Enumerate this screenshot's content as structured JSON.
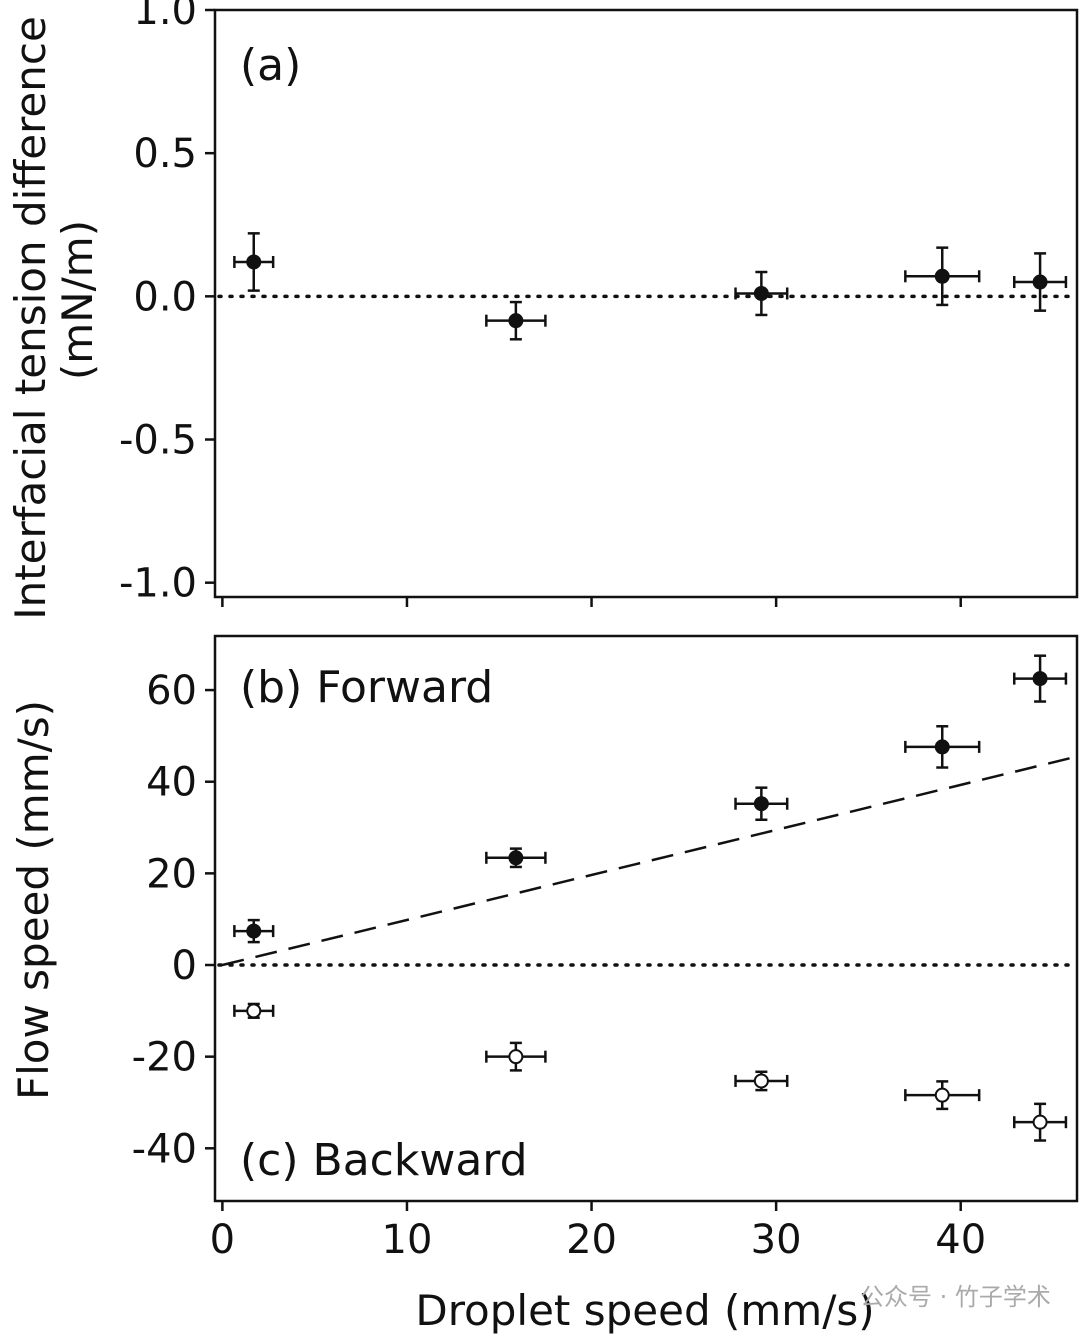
{
  "chart_data": [
    {
      "type": "scatter",
      "panel_label": "(a)",
      "ylabel": [
        "Interfacial tension difference",
        "(mN/m)"
      ],
      "xlim": [
        -0.4,
        46.3
      ],
      "ylim": [
        -1.05,
        1.0
      ],
      "xticks": [
        0,
        10,
        20,
        30,
        40
      ],
      "yticks": [
        1.0,
        0.5,
        0.0,
        -0.5,
        -1.0
      ],
      "ytick_labels": [
        "1.0",
        "0.5",
        "0.0",
        "-0.5",
        "-1.0"
      ],
      "reference_line": {
        "y": 0,
        "style": "dotted"
      },
      "series": [
        {
          "marker": "filled-circle",
          "x": [
            1.7,
            15.9,
            29.2,
            39.0,
            44.3
          ],
          "y": [
            0.12,
            -0.085,
            0.01,
            0.07,
            0.05
          ],
          "xerr": [
            1.05,
            1.6,
            1.4,
            2.0,
            1.4
          ],
          "yerr": [
            0.1,
            0.065,
            0.075,
            0.1,
            0.1
          ]
        }
      ]
    },
    {
      "type": "scatter",
      "xlabel": "Droplet speed (mm/s)",
      "ylabel": "Flow speed (mm/s)",
      "xlim": [
        -0.4,
        46.3
      ],
      "ylim": [
        -51.5,
        71.8
      ],
      "xticks": [
        0,
        10,
        20,
        30,
        40
      ],
      "xtick_labels": [
        "0",
        "10",
        "20",
        "30",
        "40"
      ],
      "yticks": [
        60,
        40,
        20,
        0,
        -20,
        -40
      ],
      "ytick_labels": [
        "60",
        "40",
        "20",
        "0",
        "-20",
        "-40"
      ],
      "reference_line": {
        "y": 0,
        "style": "dotted"
      },
      "fit_line": {
        "style": "dashed",
        "points": [
          [
            0,
            0
          ],
          [
            46.2,
            45.4
          ]
        ]
      },
      "series": [
        {
          "name": "(b) Forward",
          "marker": "filled-circle",
          "x": [
            1.7,
            15.9,
            29.2,
            39.0,
            44.3
          ],
          "y": [
            7.4,
            23.4,
            35.2,
            47.6,
            62.5
          ],
          "xerr": [
            1.05,
            1.6,
            1.4,
            2.0,
            1.4
          ],
          "yerr": [
            2.4,
            2.0,
            3.5,
            4.5,
            5.0
          ]
        },
        {
          "name": "(c) Backward",
          "marker": "open-circle",
          "x": [
            1.7,
            15.9,
            29.2,
            39.0,
            44.3
          ],
          "y": [
            -10.0,
            -20.0,
            -25.3,
            -28.4,
            -34.3
          ],
          "xerr": [
            1.05,
            1.6,
            1.4,
            2.0,
            1.4
          ],
          "yerr": [
            1.5,
            3.0,
            2.0,
            3.0,
            4.0
          ]
        }
      ]
    }
  ],
  "watermark": "公众号 · 竹子学术"
}
